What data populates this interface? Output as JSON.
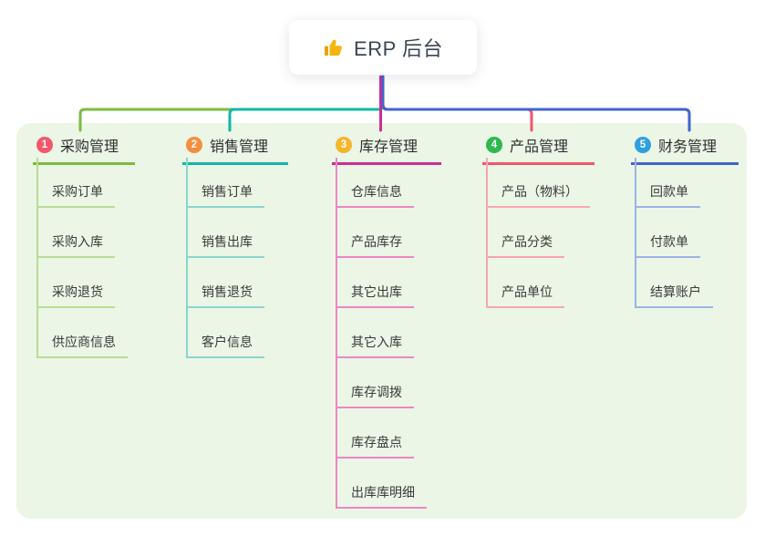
{
  "canvas": {
    "background": "#ffffff",
    "panel_color": "#ebf6e6"
  },
  "root": {
    "title": "ERP 后台",
    "icon": "thumbs-up-icon",
    "icon_color": "#f5b40f"
  },
  "branches": [
    {
      "index": "1",
      "label": "采购管理",
      "badge_color": "#f4586b",
      "line_color": "#7cbb3f",
      "light_color": "#b9dc94",
      "children": [
        "采购订单",
        "采购入库",
        "采购退货",
        "供应商信息"
      ]
    },
    {
      "index": "2",
      "label": "销售管理",
      "badge_color": "#f78d3f",
      "line_color": "#11b7a9",
      "light_color": "#8bd5cc",
      "children": [
        "销售订单",
        "销售出库",
        "销售退货",
        "客户信息"
      ]
    },
    {
      "index": "3",
      "label": "库存管理",
      "badge_color": "#f7b52c",
      "line_color": "#cb2e93",
      "light_color": "#ee86c4",
      "children": [
        "仓库信息",
        "产品库存",
        "其它出库",
        "其它入库",
        "库存调拨",
        "库存盘点",
        "出库库明细"
      ]
    },
    {
      "index": "4",
      "label": "产品管理",
      "badge_color": "#2eb84f",
      "line_color": "#f6556a",
      "light_color": "#f9a6b0",
      "children": [
        "产品（物料）",
        "产品分类",
        "产品单位"
      ]
    },
    {
      "index": "5",
      "label": "财务管理",
      "badge_color": "#2e9fe0",
      "line_color": "#4263cc",
      "light_color": "#9cb3e4",
      "children": [
        "回款单",
        "付款单",
        "结算账户"
      ]
    }
  ]
}
